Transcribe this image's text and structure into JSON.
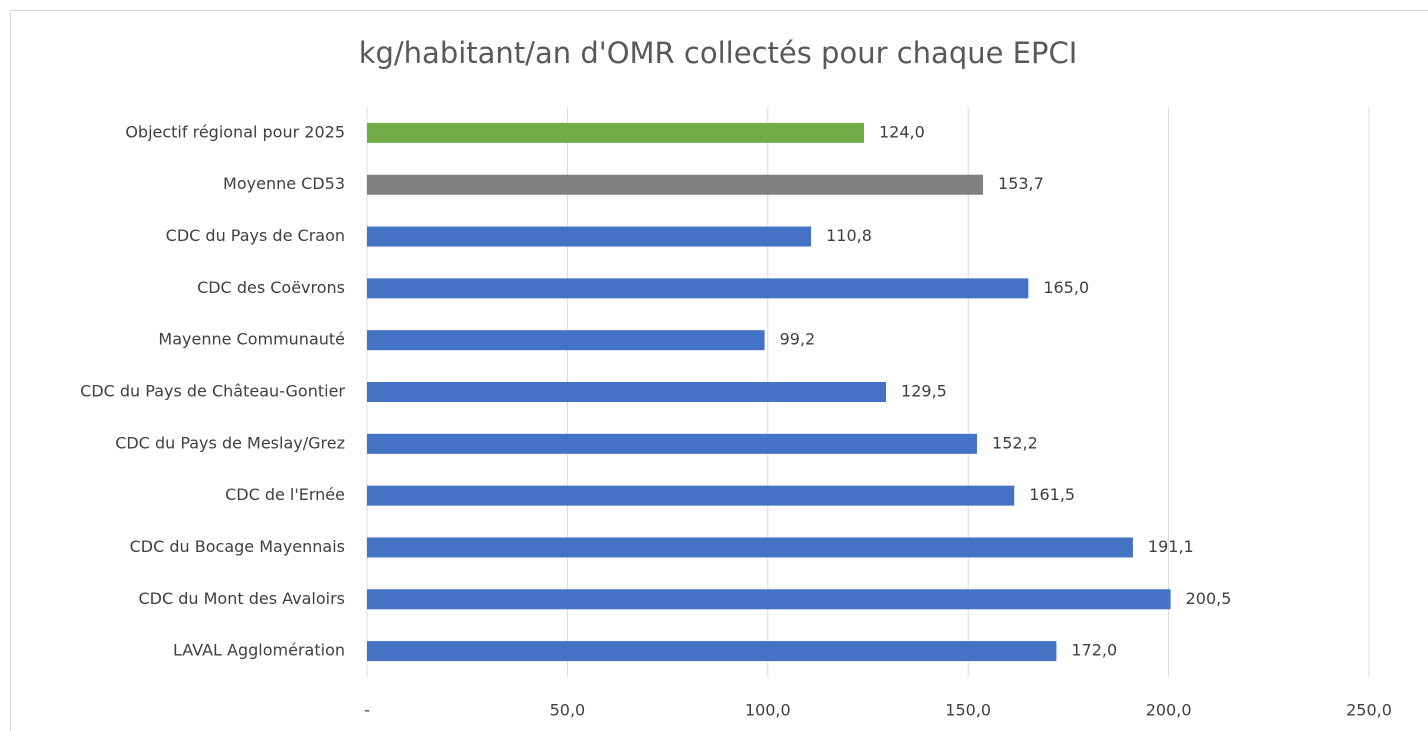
{
  "chart_data": {
    "type": "bar",
    "orientation": "horizontal",
    "title": "kg/habitant/an d'OMR collectés pour chaque EPCI",
    "categories": [
      "Objectif régional pour 2025",
      "Moyenne CD53",
      "CDC du Pays de Craon",
      "CDC des Coëvrons",
      "Mayenne Communauté",
      "CDC du Pays de Château-Gontier",
      "CDC du Pays de Meslay/Grez",
      "CDC de l'Ernée",
      "CDC du Bocage Mayennais",
      "CDC du Mont des Avaloirs",
      "LAVAL Agglomération"
    ],
    "values": [
      124.0,
      153.7,
      110.8,
      165.0,
      99.2,
      129.5,
      152.2,
      161.5,
      191.1,
      200.5,
      172.0
    ],
    "value_labels": [
      "124,0",
      "153,7",
      "110,8",
      "165,0",
      "99,2",
      "129,5",
      "152,2",
      "161,5",
      "191,1",
      "200,5",
      "172,0"
    ],
    "colors": [
      "#70ad47",
      "#808080",
      "#4472c4",
      "#4472c4",
      "#4472c4",
      "#4472c4",
      "#4472c4",
      "#4472c4",
      "#4472c4",
      "#4472c4",
      "#4472c4"
    ],
    "xlim": [
      0,
      250
    ],
    "xticks": [
      {
        "value": 0,
        "label": "-"
      },
      {
        "value": 50,
        "label": "50,0"
      },
      {
        "value": 100,
        "label": "100,0"
      },
      {
        "value": 150,
        "label": "150,0"
      },
      {
        "value": 200,
        "label": "200,0"
      },
      {
        "value": 250,
        "label": "250,0"
      }
    ],
    "grid": true
  }
}
